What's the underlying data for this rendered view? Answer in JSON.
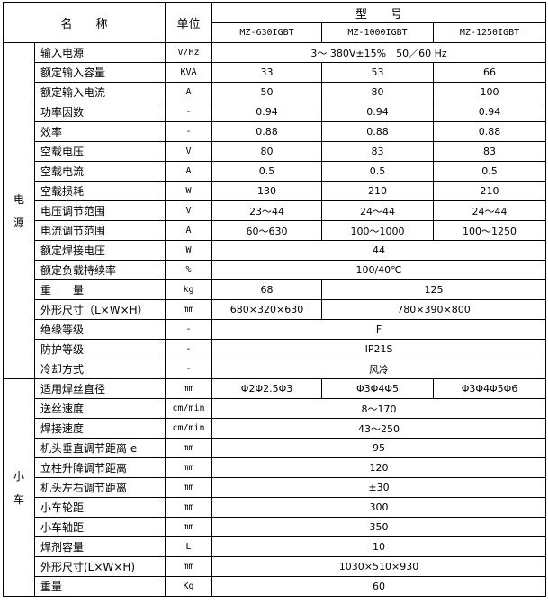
{
  "header": {
    "name_label": "名　　称",
    "unit_label": "单位",
    "model_label": "型　　号",
    "models": [
      "MZ-630IGBT",
      "MZ-1000IGBT",
      "MZ-1250IGBT"
    ]
  },
  "sections": [
    {
      "label": "电\n源",
      "rows": [
        {
          "name": "输入电源",
          "unit": "V/Hz",
          "cells": [
            {
              "v": "3～ 380V±15%　50／60 Hz",
              "span": 3
            }
          ]
        },
        {
          "name": "额定输入容量",
          "unit": "KVA",
          "cells": [
            {
              "v": "33"
            },
            {
              "v": "53"
            },
            {
              "v": "66"
            }
          ]
        },
        {
          "name": "额定输入电流",
          "unit": "A",
          "cells": [
            {
              "v": "50"
            },
            {
              "v": "80"
            },
            {
              "v": "100"
            }
          ]
        },
        {
          "name": "功率因数",
          "unit": "-",
          "cells": [
            {
              "v": "0.94"
            },
            {
              "v": "0.94"
            },
            {
              "v": "0.94"
            }
          ]
        },
        {
          "name": "效率",
          "unit": "-",
          "cells": [
            {
              "v": "0.88"
            },
            {
              "v": "0.88"
            },
            {
              "v": "0.88"
            }
          ]
        },
        {
          "name": "空载电压",
          "unit": "V",
          "cells": [
            {
              "v": "80"
            },
            {
              "v": "83"
            },
            {
              "v": "83"
            }
          ]
        },
        {
          "name": "空载电流",
          "unit": "A",
          "cells": [
            {
              "v": "0.5"
            },
            {
              "v": "0.5"
            },
            {
              "v": "0.5"
            }
          ]
        },
        {
          "name": "空载损耗",
          "unit": "W",
          "cells": [
            {
              "v": "130"
            },
            {
              "v": "210"
            },
            {
              "v": "210"
            }
          ]
        },
        {
          "name": "电压调节范围",
          "unit": "V",
          "cells": [
            {
              "v": "23～44"
            },
            {
              "v": "24～44"
            },
            {
              "v": "24～44"
            }
          ]
        },
        {
          "name": "电流调节范围",
          "unit": "A",
          "cells": [
            {
              "v": "60～630"
            },
            {
              "v": "100～1000"
            },
            {
              "v": "100～1250"
            }
          ]
        },
        {
          "name": "额定焊接电压",
          "unit": "W",
          "cells": [
            {
              "v": "44",
              "span": 3
            }
          ]
        },
        {
          "name": "额定负载持续率",
          "unit": "%",
          "cells": [
            {
              "v": "100/40℃",
              "span": 3
            }
          ]
        },
        {
          "name": "重　　量",
          "unit": "kg",
          "cells": [
            {
              "v": "68"
            },
            {
              "v": "125",
              "span": 2
            }
          ]
        },
        {
          "name": "外形尺寸（L×W×H）",
          "unit": "mm",
          "cells": [
            {
              "v": "680×320×630"
            },
            {
              "v": "780×390×800",
              "span": 2
            }
          ]
        },
        {
          "name": "绝缘等级",
          "unit": "-",
          "cells": [
            {
              "v": "F",
              "span": 3
            }
          ]
        },
        {
          "name": "防护等级",
          "unit": "-",
          "cells": [
            {
              "v": "IP21S",
              "span": 3
            }
          ]
        },
        {
          "name": "冷却方式",
          "unit": "-",
          "cells": [
            {
              "v": "风冷",
              "span": 3
            }
          ]
        }
      ]
    },
    {
      "label": "小\n车",
      "rows": [
        {
          "name": "适用焊丝直径",
          "unit": "mm",
          "cells": [
            {
              "v": "Φ2Φ2.5Φ3"
            },
            {
              "v": "Φ3Φ4Φ5"
            },
            {
              "v": "Φ3Φ4Φ5Φ6"
            }
          ]
        },
        {
          "name": "送丝速度",
          "unit": "cm/min",
          "cells": [
            {
              "v": "8～170",
              "span": 3
            }
          ]
        },
        {
          "name": "焊接速度",
          "unit": "cm/min",
          "cells": [
            {
              "v": "43～250",
              "span": 3
            }
          ]
        },
        {
          "name": "机头垂直调节距离 e",
          "unit": "mm",
          "cells": [
            {
              "v": "95",
              "span": 3
            }
          ]
        },
        {
          "name": "立柱升降调节距离",
          "unit": "mm",
          "cells": [
            {
              "v": "120",
              "span": 3
            }
          ]
        },
        {
          "name": "机头左右调节距离",
          "unit": "mm",
          "cells": [
            {
              "v": "±30",
              "span": 3
            }
          ]
        },
        {
          "name": "小车轮距",
          "unit": "mm",
          "cells": [
            {
              "v": "300",
              "span": 3
            }
          ]
        },
        {
          "name": "小车轴距",
          "unit": "mm",
          "cells": [
            {
              "v": "350",
              "span": 3
            }
          ]
        },
        {
          "name": "焊剂容量",
          "unit": "L",
          "cells": [
            {
              "v": "10",
              "span": 3
            }
          ]
        },
        {
          "name": "外形尺寸(L×W×H)",
          "unit": "mm",
          "cells": [
            {
              "v": "1030×510×930",
              "span": 3
            }
          ]
        },
        {
          "name": "重量",
          "unit": "Kg",
          "cells": [
            {
              "v": "60",
              "span": 3
            }
          ]
        }
      ]
    }
  ]
}
